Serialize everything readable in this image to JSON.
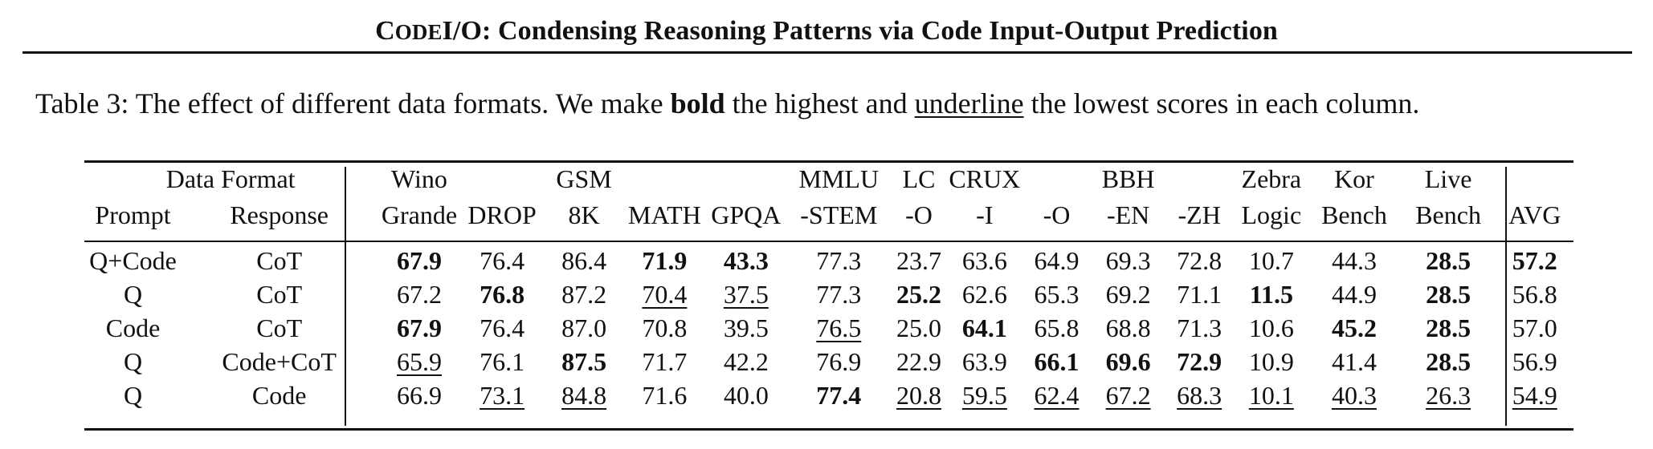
{
  "running_header": {
    "title_smallcaps": "CodeI/O",
    "title_rest": ": Condensing Reasoning Patterns via Code Input-Output Prediction"
  },
  "caption": {
    "label": "Table 3:",
    "text_1": "The effect of different data formats. We make",
    "bold_word": "bold",
    "text_2": "the highest and",
    "underline_word": "underline",
    "text_3": "the lowest scores in each column."
  },
  "table": {
    "group_header": "Data Format",
    "header_prompt": "Prompt",
    "header_response": "Response",
    "columns": [
      {
        "top": "Wino",
        "bottom": "Grande"
      },
      {
        "top": "",
        "bottom": "DROP"
      },
      {
        "top": "GSM",
        "bottom": "8K"
      },
      {
        "top": "",
        "bottom": "MATH"
      },
      {
        "top": "",
        "bottom": "GPQA"
      },
      {
        "top": "MMLU",
        "bottom": "-STEM"
      },
      {
        "top": "LC",
        "bottom": "-O"
      },
      {
        "top": "CRUX",
        "bottom": "-I"
      },
      {
        "top": "",
        "bottom": "-O"
      },
      {
        "top": "BBH",
        "bottom": "-EN"
      },
      {
        "top": "",
        "bottom": "-ZH"
      },
      {
        "top": "Zebra",
        "bottom": "Logic"
      },
      {
        "top": "Kor",
        "bottom": "Bench"
      },
      {
        "top": "Live",
        "bottom": "Bench"
      },
      {
        "top": "",
        "bottom": "AVG"
      }
    ],
    "rows": [
      {
        "prompt": "Q+Code",
        "response": "CoT",
        "values": [
          "67.9",
          "76.4",
          "86.4",
          "71.9",
          "43.3",
          "77.3",
          "23.7",
          "63.6",
          "64.9",
          "69.3",
          "72.8",
          "10.7",
          "44.3",
          "28.5",
          "57.2"
        ],
        "bold": [
          true,
          false,
          false,
          true,
          true,
          false,
          false,
          false,
          false,
          false,
          false,
          false,
          false,
          true,
          true
        ],
        "underline": [
          false,
          false,
          false,
          false,
          false,
          false,
          false,
          false,
          false,
          false,
          false,
          false,
          false,
          false,
          false
        ]
      },
      {
        "prompt": "Q",
        "response": "CoT",
        "values": [
          "67.2",
          "76.8",
          "87.2",
          "70.4",
          "37.5",
          "77.3",
          "25.2",
          "62.6",
          "65.3",
          "69.2",
          "71.1",
          "11.5",
          "44.9",
          "28.5",
          "56.8"
        ],
        "bold": [
          false,
          true,
          false,
          false,
          false,
          false,
          true,
          false,
          false,
          false,
          false,
          true,
          false,
          true,
          false
        ],
        "underline": [
          false,
          false,
          false,
          true,
          true,
          false,
          false,
          false,
          false,
          false,
          false,
          false,
          false,
          false,
          false
        ]
      },
      {
        "prompt": "Code",
        "response": "CoT",
        "values": [
          "67.9",
          "76.4",
          "87.0",
          "70.8",
          "39.5",
          "76.5",
          "25.0",
          "64.1",
          "65.8",
          "68.8",
          "71.3",
          "10.6",
          "45.2",
          "28.5",
          "57.0"
        ],
        "bold": [
          true,
          false,
          false,
          false,
          false,
          false,
          false,
          true,
          false,
          false,
          false,
          false,
          true,
          true,
          false
        ],
        "underline": [
          false,
          false,
          false,
          false,
          false,
          true,
          false,
          false,
          false,
          false,
          false,
          false,
          false,
          false,
          false
        ]
      },
      {
        "prompt": "Q",
        "response": "Code+CoT",
        "values": [
          "65.9",
          "76.1",
          "87.5",
          "71.7",
          "42.2",
          "76.9",
          "22.9",
          "63.9",
          "66.1",
          "69.6",
          "72.9",
          "10.9",
          "41.4",
          "28.5",
          "56.9"
        ],
        "bold": [
          false,
          false,
          true,
          false,
          false,
          false,
          false,
          false,
          true,
          true,
          true,
          false,
          false,
          true,
          false
        ],
        "underline": [
          true,
          false,
          false,
          false,
          false,
          false,
          false,
          false,
          false,
          false,
          false,
          false,
          false,
          false,
          false
        ]
      },
      {
        "prompt": "Q",
        "response": "Code",
        "values": [
          "66.9",
          "73.1",
          "84.8",
          "71.6",
          "40.0",
          "77.4",
          "20.8",
          "59.5",
          "62.4",
          "67.2",
          "68.3",
          "10.1",
          "40.3",
          "26.3",
          "54.9"
        ],
        "bold": [
          false,
          false,
          false,
          false,
          false,
          true,
          false,
          false,
          false,
          false,
          false,
          false,
          false,
          false,
          false
        ],
        "underline": [
          false,
          true,
          true,
          false,
          false,
          false,
          true,
          true,
          true,
          true,
          true,
          true,
          true,
          true,
          true
        ]
      }
    ]
  }
}
